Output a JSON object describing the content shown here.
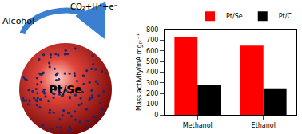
{
  "chart_data": {
    "type": "bar",
    "categories": [
      "Methanol",
      "Ethanol"
    ],
    "series": [
      {
        "name": "Pt/Se",
        "color": "#ff0000",
        "values": [
          728,
          648
        ]
      },
      {
        "name": "Pt/C",
        "color": "#000000",
        "values": [
          278,
          248
        ]
      }
    ],
    "y_label": "Mass activity/mA mgₚₜ⁻¹",
    "ylim": [
      0,
      800
    ],
    "yticks": [
      0,
      100,
      200,
      300,
      400,
      500,
      600,
      700,
      800
    ],
    "grid": false,
    "legend": "top right"
  },
  "diagram": {
    "reactant": "Alcohol",
    "products": "CO₂+H⁺+e⁻",
    "particle": "Pt/Se"
  }
}
